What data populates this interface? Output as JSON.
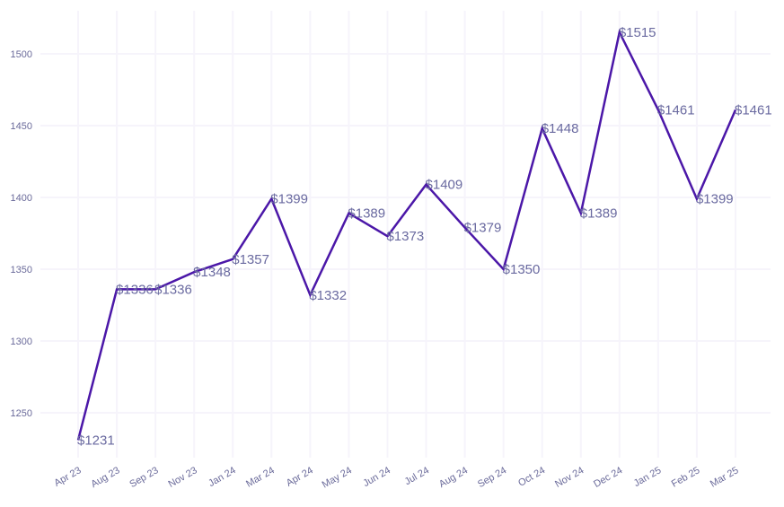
{
  "chart_data": {
    "type": "line",
    "title": "",
    "xlabel": "",
    "ylabel": "",
    "categories": [
      "Apr 23",
      "Aug 23",
      "Sep 23",
      "Nov 23",
      "Jan 24",
      "Mar 24",
      "Apr 24",
      "May 24",
      "Jun 24",
      "Jul 24",
      "Aug 24",
      "Sep 24",
      "Oct 24",
      "Nov 24",
      "Dec 24",
      "Jan 25",
      "Feb 25",
      "Mar 25"
    ],
    "values": [
      1231,
      1336,
      1336,
      1348,
      1357,
      1399,
      1332,
      1389,
      1373,
      1409,
      1379,
      1350,
      1448,
      1389,
      1515,
      1461,
      1399,
      1461
    ],
    "data_labels": [
      "$1231",
      "$1336",
      "$1336",
      "$1348",
      "$1357",
      "$1399",
      "$1332",
      "$1389",
      "$1373",
      "$1409",
      "$1379",
      "$1350",
      "$1448",
      "$1389",
      "$1515",
      "$1461",
      "$1399",
      "$1461"
    ],
    "yticks": [
      1250,
      1300,
      1350,
      1400,
      1450,
      1500
    ],
    "ylim": [
      1220,
      1530
    ],
    "grid": true,
    "legend": "none",
    "colors": {
      "line": "#4b17a8",
      "labels": "#6a6aa0",
      "ticks": "#6a6a9a",
      "grid": "#f6f4fb"
    }
  }
}
